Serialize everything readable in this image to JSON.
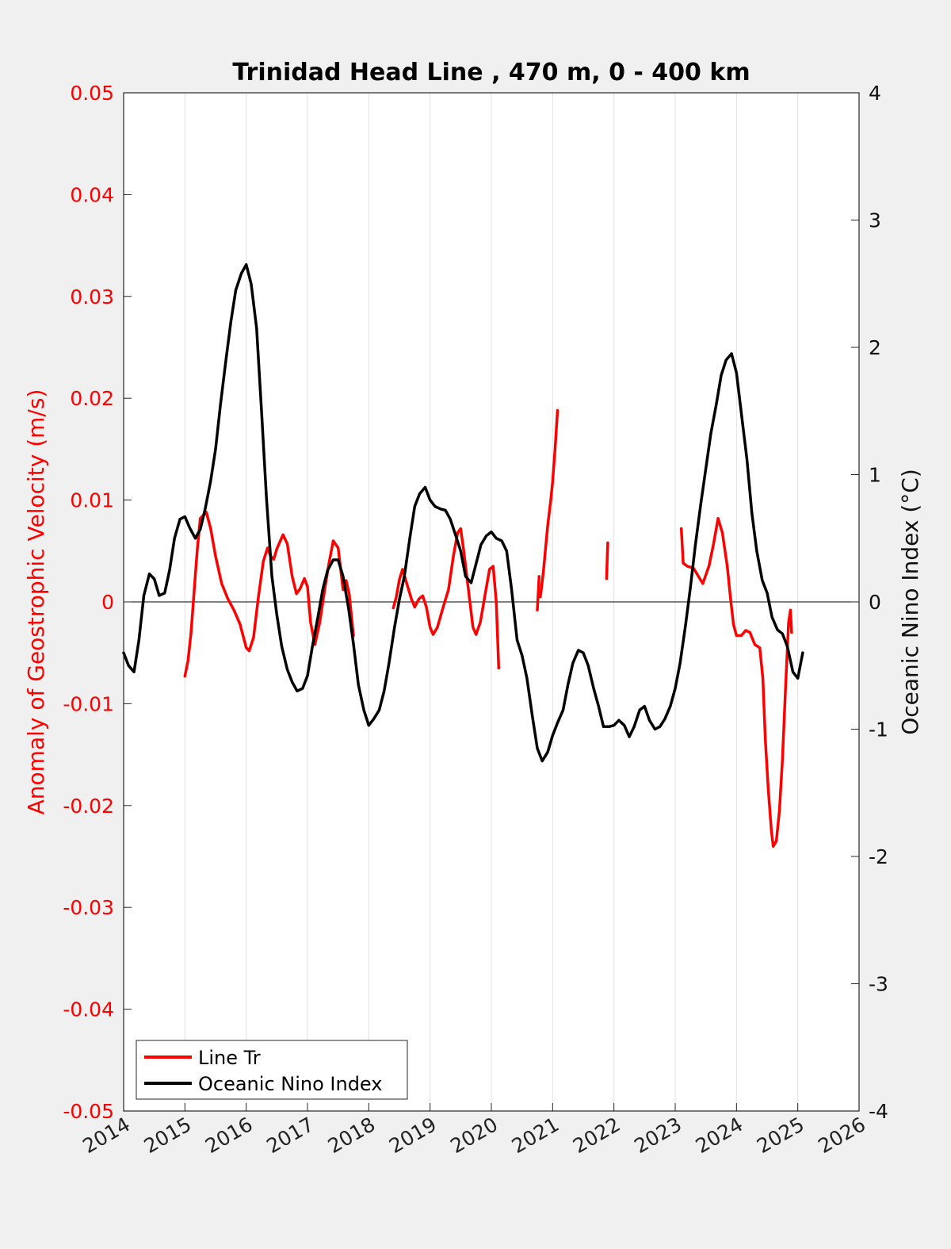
{
  "chart_data": {
    "type": "line",
    "title": "Trinidad Head Line , 470 m, 0 - 400 km",
    "ylabel_left": "Anomaly of Geostrophic Velocity (m/s)",
    "ylabel_right": "Oceanic Nino Index (°C)",
    "xlim": [
      2014,
      2026
    ],
    "ylim_left": [
      -0.05,
      0.05
    ],
    "ylim_right": [
      -4,
      4
    ],
    "x_ticks": [
      "2014",
      "2015",
      "2016",
      "2017",
      "2018",
      "2019",
      "2020",
      "2021",
      "2022",
      "2023",
      "2024",
      "2025",
      "2026"
    ],
    "y_ticks_left": [
      "0.05",
      "0.04",
      "0.03",
      "0.02",
      "0.01",
      "0",
      "-0.01",
      "-0.02",
      "-0.03",
      "-0.04",
      "-0.05"
    ],
    "y_ticks_right": [
      "4",
      "3",
      "2",
      "1",
      "0",
      "-1",
      "-2",
      "-3",
      "-4"
    ],
    "grid": "vertical",
    "zero_line": true,
    "legend_position": "bottom-left",
    "colors": {
      "line_tr": "#ff0000",
      "oni": "#000000"
    },
    "series": [
      {
        "name": "Line Tr",
        "axis": "left",
        "segments": [
          [
            [
              2015.0,
              -0.0073
            ],
            [
              2015.05,
              -0.0058
            ],
            [
              2015.1,
              -0.003
            ],
            [
              2015.15,
              0.001
            ],
            [
              2015.2,
              0.005
            ],
            [
              2015.25,
              0.0082
            ],
            [
              2015.35,
              0.0088
            ],
            [
              2015.42,
              0.0072
            ],
            [
              2015.5,
              0.0045
            ],
            [
              2015.6,
              0.0018
            ],
            [
              2015.7,
              0.0003
            ],
            [
              2015.8,
              -0.0008
            ],
            [
              2015.9,
              -0.0022
            ],
            [
              2016.0,
              -0.0045
            ],
            [
              2016.05,
              -0.0048
            ],
            [
              2016.12,
              -0.0035
            ],
            [
              2016.2,
              0.0005
            ],
            [
              2016.28,
              0.004
            ],
            [
              2016.35,
              0.0053
            ],
            [
              2016.4,
              0.0045
            ],
            [
              2016.45,
              0.0042
            ],
            [
              2016.5,
              0.0052
            ],
            [
              2016.6,
              0.0066
            ],
            [
              2016.67,
              0.0057
            ],
            [
              2016.75,
              0.0025
            ],
            [
              2016.82,
              0.0008
            ],
            [
              2016.88,
              0.0013
            ],
            [
              2016.95,
              0.0023
            ],
            [
              2017.0,
              0.0015
            ],
            [
              2017.05,
              -0.002
            ],
            [
              2017.12,
              -0.0042
            ],
            [
              2017.2,
              -0.002
            ],
            [
              2017.28,
              0.0012
            ],
            [
              2017.35,
              0.0038
            ],
            [
              2017.42,
              0.006
            ],
            [
              2017.5,
              0.0053
            ],
            [
              2017.58,
              0.0012
            ],
            [
              2017.63,
              0.0021
            ],
            [
              2017.68,
              0.0008
            ],
            [
              2017.75,
              -0.0033
            ]
          ],
          [
            [
              2018.4,
              -0.0006
            ],
            [
              2018.45,
              0.0005
            ],
            [
              2018.5,
              0.0022
            ],
            [
              2018.55,
              0.0032
            ],
            [
              2018.62,
              0.0018
            ],
            [
              2018.7,
              0.0002
            ],
            [
              2018.75,
              -0.0005
            ],
            [
              2018.82,
              0.0003
            ],
            [
              2018.88,
              0.0006
            ],
            [
              2018.94,
              -0.0005
            ],
            [
              2019.0,
              -0.0025
            ],
            [
              2019.05,
              -0.0032
            ],
            [
              2019.12,
              -0.0025
            ],
            [
              2019.2,
              -0.0008
            ],
            [
              2019.3,
              0.0012
            ],
            [
              2019.38,
              0.0045
            ],
            [
              2019.45,
              0.0068
            ],
            [
              2019.5,
              0.0072
            ],
            [
              2019.55,
              0.005
            ],
            [
              2019.62,
              0.0015
            ],
            [
              2019.7,
              -0.0025
            ],
            [
              2019.75,
              -0.0032
            ],
            [
              2019.82,
              -0.002
            ],
            [
              2019.9,
              0.0008
            ],
            [
              2019.97,
              0.0032
            ],
            [
              2020.03,
              0.0035
            ],
            [
              2020.08,
              0.0
            ],
            [
              2020.12,
              -0.0065
            ]
          ],
          [
            [
              2020.75,
              -0.0008
            ],
            [
              2020.78,
              0.0025
            ]
          ],
          [
            [
              2020.8,
              0.0005
            ],
            [
              2020.85,
              0.003
            ],
            [
              2020.92,
              0.0075
            ],
            [
              2020.97,
              0.01
            ],
            [
              2021.0,
              0.0118
            ],
            [
              2021.04,
              0.015
            ],
            [
              2021.08,
              0.0188
            ]
          ],
          [
            [
              2021.88,
              0.0023
            ],
            [
              2021.9,
              0.0058
            ]
          ],
          [
            [
              2023.1,
              0.0072
            ],
            [
              2023.13,
              0.0038
            ],
            [
              2023.2,
              0.0035
            ],
            [
              2023.3,
              0.0033
            ],
            [
              2023.38,
              0.0025
            ],
            [
              2023.45,
              0.0018
            ],
            [
              2023.55,
              0.0035
            ],
            [
              2023.62,
              0.0055
            ],
            [
              2023.7,
              0.0082
            ],
            [
              2023.77,
              0.0068
            ],
            [
              2023.85,
              0.0035
            ],
            [
              2023.9,
              0.0005
            ],
            [
              2023.95,
              -0.0022
            ],
            [
              2024.0,
              -0.0033
            ],
            [
              2024.08,
              -0.0033
            ],
            [
              2024.15,
              -0.0028
            ],
            [
              2024.22,
              -0.003
            ],
            [
              2024.3,
              -0.0042
            ],
            [
              2024.38,
              -0.0045
            ],
            [
              2024.43,
              -0.0075
            ],
            [
              2024.47,
              -0.0135
            ],
            [
              2024.52,
              -0.0185
            ],
            [
              2024.57,
              -0.0225
            ],
            [
              2024.6,
              -0.024
            ],
            [
              2024.65,
              -0.0235
            ],
            [
              2024.7,
              -0.0205
            ],
            [
              2024.75,
              -0.0155
            ],
            [
              2024.8,
              -0.0085
            ],
            [
              2024.85,
              -0.002
            ],
            [
              2024.88,
              -0.0008
            ],
            [
              2024.9,
              -0.003
            ]
          ]
        ]
      },
      {
        "name": "Oceanic Nino Index",
        "axis": "right",
        "points": [
          [
            2014.0,
            -0.4
          ],
          [
            2014.08,
            -0.5
          ],
          [
            2014.17,
            -0.55
          ],
          [
            2014.25,
            -0.3
          ],
          [
            2014.33,
            0.05
          ],
          [
            2014.42,
            0.22
          ],
          [
            2014.5,
            0.18
          ],
          [
            2014.58,
            0.05
          ],
          [
            2014.67,
            0.07
          ],
          [
            2014.75,
            0.25
          ],
          [
            2014.83,
            0.5
          ],
          [
            2014.92,
            0.65
          ],
          [
            2015.0,
            0.67
          ],
          [
            2015.08,
            0.58
          ],
          [
            2015.17,
            0.5
          ],
          [
            2015.25,
            0.57
          ],
          [
            2015.33,
            0.73
          ],
          [
            2015.42,
            0.95
          ],
          [
            2015.5,
            1.2
          ],
          [
            2015.58,
            1.55
          ],
          [
            2015.67,
            1.9
          ],
          [
            2015.75,
            2.2
          ],
          [
            2015.83,
            2.45
          ],
          [
            2015.92,
            2.58
          ],
          [
            2016.0,
            2.65
          ],
          [
            2016.08,
            2.5
          ],
          [
            2016.17,
            2.15
          ],
          [
            2016.25,
            1.5
          ],
          [
            2016.33,
            0.82
          ],
          [
            2016.42,
            0.2
          ],
          [
            2016.5,
            -0.1
          ],
          [
            2016.58,
            -0.35
          ],
          [
            2016.67,
            -0.53
          ],
          [
            2016.75,
            -0.63
          ],
          [
            2016.83,
            -0.7
          ],
          [
            2016.92,
            -0.68
          ],
          [
            2017.0,
            -0.58
          ],
          [
            2017.08,
            -0.35
          ],
          [
            2017.17,
            -0.12
          ],
          [
            2017.25,
            0.1
          ],
          [
            2017.33,
            0.25
          ],
          [
            2017.42,
            0.33
          ],
          [
            2017.5,
            0.33
          ],
          [
            2017.58,
            0.2
          ],
          [
            2017.67,
            -0.05
          ],
          [
            2017.75,
            -0.33
          ],
          [
            2017.83,
            -0.65
          ],
          [
            2017.92,
            -0.85
          ],
          [
            2018.0,
            -0.97
          ],
          [
            2018.08,
            -0.92
          ],
          [
            2018.17,
            -0.85
          ],
          [
            2018.25,
            -0.7
          ],
          [
            2018.33,
            -0.48
          ],
          [
            2018.42,
            -0.2
          ],
          [
            2018.5,
            0.02
          ],
          [
            2018.58,
            0.2
          ],
          [
            2018.67,
            0.5
          ],
          [
            2018.75,
            0.75
          ],
          [
            2018.83,
            0.85
          ],
          [
            2018.92,
            0.9
          ],
          [
            2019.0,
            0.8
          ],
          [
            2019.08,
            0.75
          ],
          [
            2019.17,
            0.73
          ],
          [
            2019.25,
            0.72
          ],
          [
            2019.33,
            0.65
          ],
          [
            2019.42,
            0.52
          ],
          [
            2019.5,
            0.4
          ],
          [
            2019.58,
            0.2
          ],
          [
            2019.67,
            0.15
          ],
          [
            2019.75,
            0.3
          ],
          [
            2019.83,
            0.45
          ],
          [
            2019.92,
            0.52
          ],
          [
            2020.0,
            0.55
          ],
          [
            2020.08,
            0.5
          ],
          [
            2020.17,
            0.48
          ],
          [
            2020.25,
            0.4
          ],
          [
            2020.33,
            0.1
          ],
          [
            2020.42,
            -0.3
          ],
          [
            2020.5,
            -0.42
          ],
          [
            2020.58,
            -0.6
          ],
          [
            2020.67,
            -0.9
          ],
          [
            2020.75,
            -1.15
          ],
          [
            2020.83,
            -1.25
          ],
          [
            2020.92,
            -1.18
          ],
          [
            2021.0,
            -1.05
          ],
          [
            2021.08,
            -0.95
          ],
          [
            2021.17,
            -0.85
          ],
          [
            2021.25,
            -0.65
          ],
          [
            2021.33,
            -0.48
          ],
          [
            2021.42,
            -0.38
          ],
          [
            2021.5,
            -0.4
          ],
          [
            2021.58,
            -0.5
          ],
          [
            2021.67,
            -0.68
          ],
          [
            2021.75,
            -0.82
          ],
          [
            2021.83,
            -0.98
          ],
          [
            2021.92,
            -0.98
          ],
          [
            2022.0,
            -0.97
          ],
          [
            2022.08,
            -0.93
          ],
          [
            2022.17,
            -0.97
          ],
          [
            2022.25,
            -1.06
          ],
          [
            2022.33,
            -0.98
          ],
          [
            2022.42,
            -0.85
          ],
          [
            2022.5,
            -0.82
          ],
          [
            2022.58,
            -0.93
          ],
          [
            2022.67,
            -1.0
          ],
          [
            2022.75,
            -0.98
          ],
          [
            2022.83,
            -0.92
          ],
          [
            2022.92,
            -0.82
          ],
          [
            2023.0,
            -0.68
          ],
          [
            2023.08,
            -0.48
          ],
          [
            2023.17,
            -0.18
          ],
          [
            2023.25,
            0.12
          ],
          [
            2023.33,
            0.45
          ],
          [
            2023.42,
            0.78
          ],
          [
            2023.5,
            1.05
          ],
          [
            2023.58,
            1.32
          ],
          [
            2023.67,
            1.55
          ],
          [
            2023.75,
            1.78
          ],
          [
            2023.83,
            1.9
          ],
          [
            2023.92,
            1.95
          ],
          [
            2024.0,
            1.8
          ],
          [
            2024.08,
            1.48
          ],
          [
            2024.17,
            1.12
          ],
          [
            2024.25,
            0.7
          ],
          [
            2024.33,
            0.4
          ],
          [
            2024.42,
            0.17
          ],
          [
            2024.5,
            0.07
          ],
          [
            2024.58,
            -0.12
          ],
          [
            2024.67,
            -0.22
          ],
          [
            2024.75,
            -0.25
          ],
          [
            2024.83,
            -0.35
          ],
          [
            2024.92,
            -0.55
          ],
          [
            2025.0,
            -0.6
          ],
          [
            2025.08,
            -0.4
          ]
        ]
      }
    ],
    "legend": [
      "Line Tr",
      "Oceanic Nino Index"
    ]
  }
}
